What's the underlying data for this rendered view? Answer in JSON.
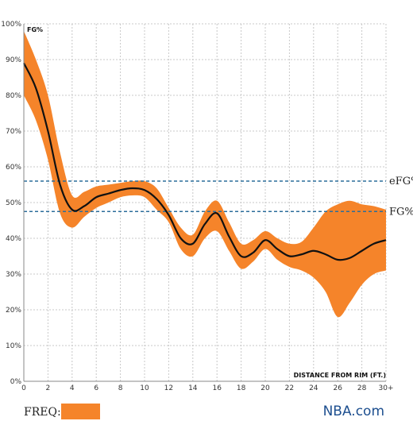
{
  "chart_data": {
    "type": "line",
    "panel_label": "FG%",
    "xlabel": "DISTANCE FROM RIM (FT.)",
    "xlim": [
      0,
      30
    ],
    "ylim": [
      0,
      100
    ],
    "x_ticks": [
      0,
      2,
      4,
      6,
      8,
      10,
      12,
      14,
      16,
      18,
      20,
      22,
      24,
      26,
      28,
      30
    ],
    "x_tick_labels": [
      "0",
      "2",
      "4",
      "6",
      "8",
      "10",
      "12",
      "14",
      "16",
      "18",
      "20",
      "22",
      "24",
      "26",
      "28",
      "30+"
    ],
    "y_ticks": [
      0,
      10,
      20,
      30,
      40,
      50,
      60,
      70,
      80,
      90,
      100
    ],
    "y_tick_labels": [
      "0%",
      "10%",
      "20%",
      "30%",
      "40%",
      "50%",
      "60%",
      "70%",
      "80%",
      "90%",
      "100%"
    ],
    "grid": true,
    "reference_lines": [
      {
        "label": "eFG%",
        "value": 56,
        "color": "#2c6e9b"
      },
      {
        "label": "FG%",
        "value": 47.5,
        "color": "#2c6e9b"
      }
    ],
    "series": [
      {
        "color": "#111111",
        "x": [
          0,
          1,
          2,
          3,
          4,
          5,
          6,
          7,
          8,
          9,
          10,
          11,
          12,
          13,
          14,
          15,
          16,
          17,
          18,
          19,
          20,
          21,
          22,
          23,
          24,
          25,
          26,
          27,
          28,
          29,
          30
        ],
        "y": [
          89,
          82,
          70,
          55,
          48,
          49,
          51.5,
          52.5,
          53.5,
          54,
          53.5,
          51,
          46.5,
          40,
          38.5,
          44,
          47,
          40.5,
          35,
          36,
          39.5,
          37,
          35,
          35.5,
          36.5,
          35.5,
          34,
          34.5,
          36.5,
          38.5,
          39.5
        ]
      }
    ],
    "band": {
      "color": "#f5842a",
      "upper": [
        98,
        90,
        80,
        64,
        52,
        53,
        54.5,
        55,
        55.5,
        56,
        56,
        54,
        48.5,
        43,
        41,
        47.5,
        50.5,
        44.5,
        38.5,
        39.5,
        42,
        40,
        38.5,
        39,
        43,
        47.5,
        49.5,
        50.5,
        49.5,
        49,
        48
      ],
      "lower": [
        80,
        73,
        62,
        47,
        43,
        46,
        48.5,
        50,
        51.5,
        52,
        51.5,
        48,
        44.5,
        37,
        35,
        40,
        42,
        36.5,
        31.5,
        33.5,
        37,
        34,
        32,
        31,
        29,
        25,
        18,
        22,
        27,
        30,
        31
      ]
    }
  },
  "legend": {
    "label": "FREQ:",
    "swatch_color": "#f5842a"
  },
  "brand": {
    "text": "NBA.com"
  }
}
